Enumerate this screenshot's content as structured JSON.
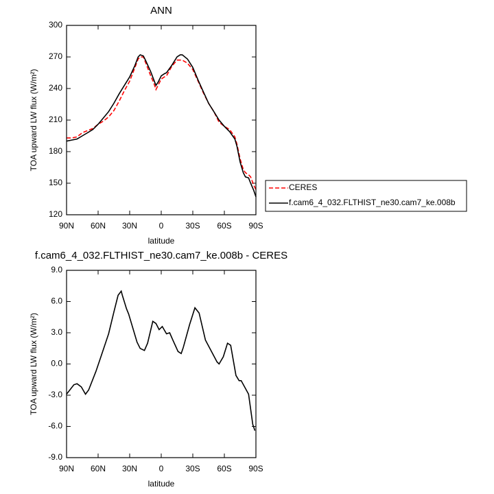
{
  "chart_data": [
    {
      "type": "line",
      "title": "ANN",
      "xlabel": "latitude",
      "ylabel": "TOA upward LW flux (W/m²)",
      "xlim": [
        90,
        -90
      ],
      "ylim": [
        120,
        300
      ],
      "xticks": [
        {
          "value": 90,
          "label": "90N"
        },
        {
          "value": 60,
          "label": "60N"
        },
        {
          "value": 30,
          "label": "30N"
        },
        0,
        {
          "value": -30,
          "label": "30S"
        },
        {
          "value": -60,
          "label": "60S"
        },
        {
          "value": -90,
          "label": "90S"
        }
      ],
      "yticks": [
        120,
        150,
        180,
        210,
        240,
        270,
        300
      ],
      "x": [
        90,
        85,
        80,
        75,
        70,
        65,
        60,
        55,
        50,
        45,
        40,
        35,
        30,
        25,
        22,
        20,
        17,
        15,
        10,
        7,
        5,
        3,
        0,
        -3,
        -5,
        -10,
        -15,
        -18,
        -20,
        -25,
        -30,
        -35,
        -40,
        -45,
        -50,
        -55,
        -60,
        -65,
        -70,
        -72,
        -75,
        -78,
        -80,
        -83,
        -85,
        -88,
        -90
      ],
      "series": [
        {
          "name": "CERES",
          "color": "#ff0000",
          "dashed": true,
          "values": [
            193,
            193,
            194,
            198,
            200,
            202,
            206,
            209,
            213,
            219,
            228,
            238,
            247,
            260,
            268,
            270,
            270,
            265,
            252,
            245,
            239,
            243,
            249,
            251,
            252,
            261,
            267,
            267,
            267,
            264,
            258,
            247,
            236,
            226,
            218,
            208,
            204,
            201,
            194,
            187,
            173,
            163,
            160,
            158,
            156,
            148,
            144
          ]
        },
        {
          "name": "f.cam6_4_032.FLTHIST_ne30.cam7_ke.008b",
          "color": "#000000",
          "dashed": false,
          "values": [
            190,
            191,
            192,
            195,
            198,
            201,
            206,
            212,
            218,
            226,
            235,
            243,
            251,
            262,
            270,
            272,
            271,
            267,
            256,
            248,
            243,
            246,
            252,
            254,
            255,
            262,
            270,
            272,
            272,
            268,
            260,
            248,
            237,
            226,
            218,
            210,
            204,
            199,
            192,
            185,
            170,
            160,
            156,
            155,
            150,
            143,
            137
          ]
        }
      ]
    },
    {
      "type": "line",
      "title": "f.cam6_4_032.FLTHIST_ne30.cam7_ke.008b - CERES",
      "xlabel": "latitude",
      "ylabel": "TOA upward LW flux (W/m²)",
      "xlim": [
        90,
        -90
      ],
      "ylim": [
        -9,
        9
      ],
      "xticks": [
        {
          "value": 90,
          "label": "90N"
        },
        {
          "value": 60,
          "label": "60N"
        },
        {
          "value": 30,
          "label": "30N"
        },
        0,
        {
          "value": -30,
          "label": "30S"
        },
        {
          "value": -60,
          "label": "60S"
        },
        {
          "value": -90,
          "label": "90S"
        }
      ],
      "yticks": [
        {
          "value": -9,
          "label": "-9.0"
        },
        {
          "value": -6,
          "label": "-6.0"
        },
        {
          "value": -3,
          "label": "-3.0"
        },
        {
          "value": 0,
          "label": "0.0"
        },
        {
          "value": 3,
          "label": "3.0"
        },
        {
          "value": 6,
          "label": "6.0"
        },
        {
          "value": 9,
          "label": "9.0"
        }
      ],
      "x": [
        90,
        83,
        80,
        76,
        72,
        69,
        62,
        57,
        50,
        45,
        41,
        38,
        37,
        33,
        31,
        23,
        20,
        16,
        13,
        8,
        5,
        2,
        -1,
        -5,
        -8,
        -11,
        -16,
        -19,
        -21,
        -27,
        -32,
        -36,
        -42,
        -53,
        -55,
        -59,
        -63,
        -66,
        -71,
        -74,
        -76,
        -83,
        -87,
        -89
      ],
      "series": [
        {
          "color": "#000000",
          "dashed": false,
          "values": [
            -2.9,
            -2.0,
            -1.9,
            -2.2,
            -2.9,
            -2.5,
            -0.7,
            0.8,
            2.9,
            5.0,
            6.6,
            7.0,
            6.6,
            5.3,
            4.8,
            2.1,
            1.5,
            1.3,
            2.0,
            4.1,
            3.9,
            3.3,
            3.6,
            2.9,
            3.0,
            2.3,
            1.2,
            1.0,
            1.6,
            3.8,
            5.4,
            4.9,
            2.3,
            0.2,
            0.0,
            0.7,
            2.0,
            1.8,
            -1.1,
            -1.6,
            -1.6,
            -2.9,
            -5.8,
            -6.4
          ]
        }
      ]
    }
  ]
}
